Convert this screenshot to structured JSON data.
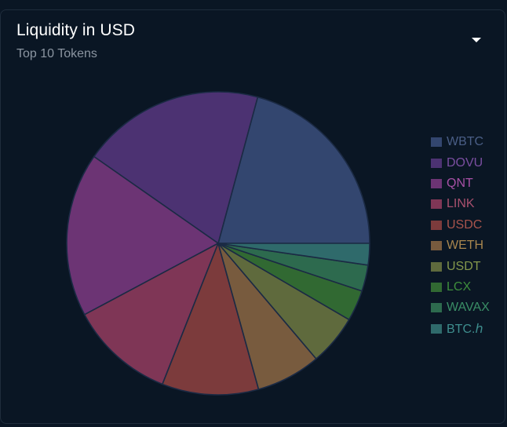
{
  "card": {
    "title": "Liquidity in USD",
    "subtitle": "Top 10 Tokens",
    "menu_icon": "caret-down-icon"
  },
  "chart_data": {
    "type": "pie",
    "title": "Liquidity in USD",
    "subtitle": "Top 10 Tokens",
    "legend_position": "right",
    "slice_border_color": "#1b2a44",
    "categories": [
      "WBTC",
      "DOVU",
      "QNT",
      "LINK",
      "USDC",
      "WETH",
      "USDT",
      "LCX",
      "WAVAX",
      "BTC.ℎ"
    ],
    "values": [
      20.8,
      19.5,
      17.5,
      11.2,
      10.3,
      6.9,
      5.4,
      3.3,
      2.8,
      2.3
    ],
    "colors": [
      "#33466f",
      "#4c3272",
      "#6c3474",
      "#7f3656",
      "#7c3b3c",
      "#785b3e",
      "#5f6a3d",
      "#316932",
      "#2d6a4e",
      "#2f6a6b"
    ],
    "legend_text_colors": [
      "#4a5e86",
      "#7a4ea0",
      "#a850a6",
      "#a8506e",
      "#a8544c",
      "#a8864e",
      "#84984c",
      "#3e8e3c",
      "#3a8e66",
      "#3e8e8e"
    ]
  }
}
